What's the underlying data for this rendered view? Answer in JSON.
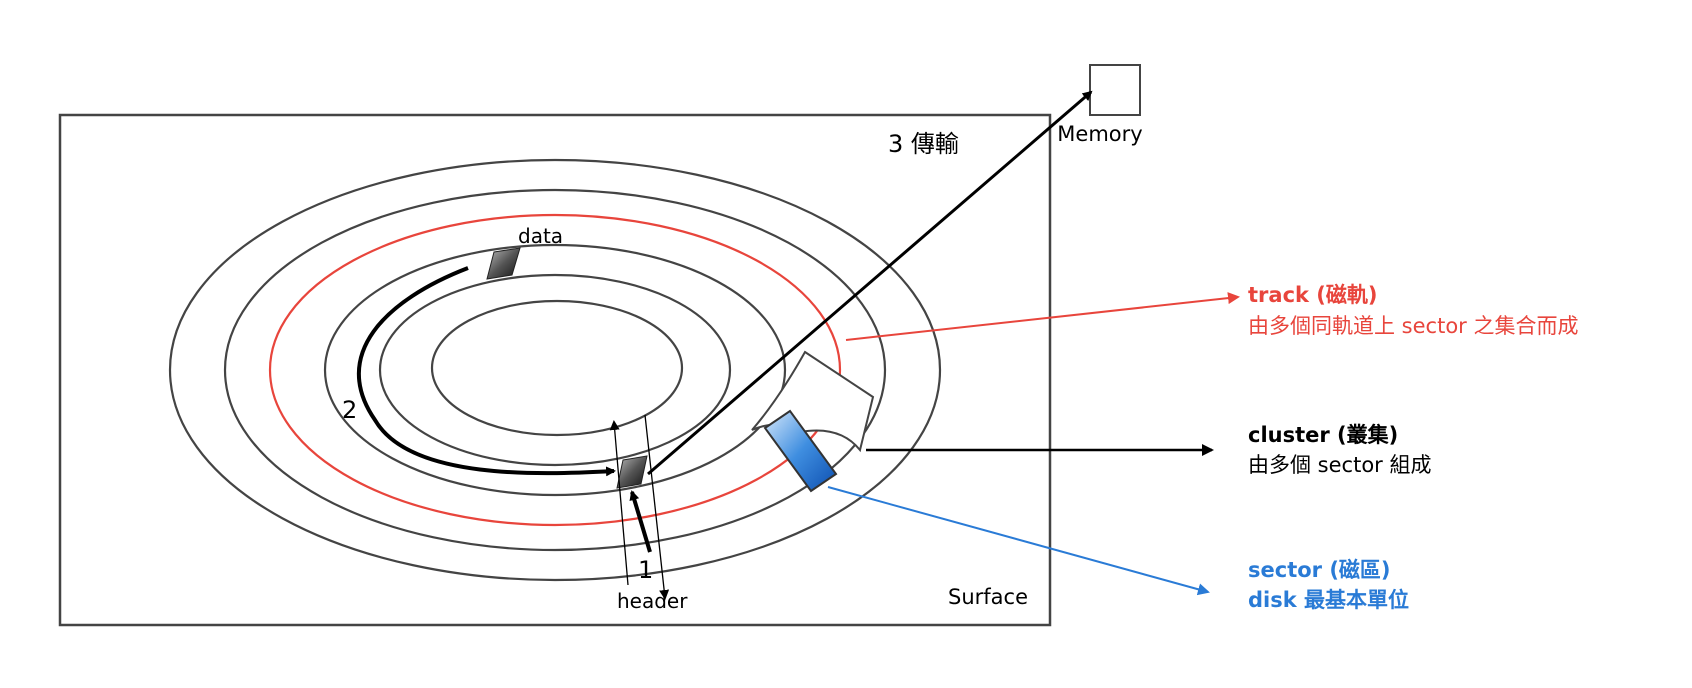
{
  "labels": {
    "memory": "Memory",
    "transfer": "3 傳輸",
    "data": "data",
    "step2": "2",
    "step1": "1",
    "header": "header",
    "surface": "Surface"
  },
  "legend": {
    "track": {
      "title": "track (磁軌)",
      "desc": "由多個同軌道上 sector 之集合而成",
      "color": "#e8453c"
    },
    "cluster": {
      "title": "cluster (叢集)",
      "desc": "由多個 sector 組成",
      "color": "#000000"
    },
    "sector": {
      "title": "sector (磁區)",
      "desc": "disk 最基本單位",
      "color": "#2a7bd6"
    }
  }
}
